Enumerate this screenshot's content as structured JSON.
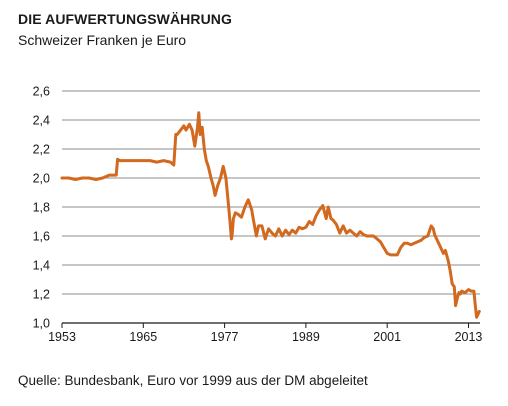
{
  "chart_data": {
    "type": "line",
    "title": "DIE AUFWERTUNGSWÄHRUNG",
    "subtitle": "Schweizer Franken je Euro",
    "source": "Quelle: Bundesbank, Euro vor 1999 aus der DM abgeleitet",
    "xlabel": "",
    "ylabel": "",
    "xlim": [
      1953,
      2014.7
    ],
    "ylim": [
      1.0,
      2.6
    ],
    "x_ticks": [
      1953,
      1965,
      1977,
      1989,
      2001,
      2013
    ],
    "y_ticks": [
      1.0,
      1.2,
      1.4,
      1.6,
      1.8,
      2.0,
      2.2,
      2.4,
      2.6
    ],
    "y_tick_labels": [
      "1,0",
      "1,2",
      "1,4",
      "1,6",
      "1,8",
      "2,0",
      "2,2",
      "2,4",
      "2,6"
    ],
    "grid": "horizontal",
    "line_color": "#d2691e",
    "series": [
      {
        "x": [
          1953.0,
          1954.0,
          1955.0,
          1956.0,
          1957.0,
          1958.0,
          1959.0,
          1960.0,
          1961.0,
          1961.2,
          1961.5,
          1962.0,
          1963.0,
          1964.0,
          1965.0,
          1966.0,
          1967.0,
          1968.0,
          1969.0,
          1969.5,
          1969.8,
          1970.0,
          1970.5,
          1971.0,
          1971.3,
          1971.8,
          1972.2,
          1972.6,
          1973.0,
          1973.2,
          1973.4,
          1973.7,
          1974.0,
          1974.3,
          1974.6,
          1975.0,
          1975.3,
          1975.6,
          1976.0,
          1976.4,
          1976.8,
          1977.2,
          1977.5,
          1977.8,
          1978.0,
          1978.1,
          1978.3,
          1978.6,
          1979.0,
          1979.5,
          1980.0,
          1980.5,
          1981.0,
          1981.3,
          1981.7,
          1982.0,
          1982.5,
          1983.0,
          1983.5,
          1984.0,
          1984.5,
          1985.0,
          1985.5,
          1986.0,
          1986.5,
          1987.0,
          1987.5,
          1988.0,
          1988.5,
          1989.0,
          1989.5,
          1990.0,
          1990.5,
          1991.0,
          1991.5,
          1992.0,
          1992.3,
          1992.7,
          1993.0,
          1993.5,
          1994.0,
          1994.5,
          1995.0,
          1995.5,
          1996.0,
          1996.5,
          1997.0,
          1997.5,
          1998.0,
          1998.5,
          1999.0,
          1999.5,
          2000.0,
          2000.5,
          2001.0,
          2001.5,
          2002.0,
          2002.5,
          2003.0,
          2003.5,
          2004.0,
          2004.5,
          2005.0,
          2005.5,
          2006.0,
          2006.5,
          2007.0,
          2007.5,
          2007.8,
          2008.0,
          2008.3,
          2008.6,
          2009.0,
          2009.3,
          2009.6,
          2010.0,
          2010.3,
          2010.6,
          2010.9,
          2011.1,
          2011.4,
          2011.6,
          2011.8,
          2012.0,
          2012.5,
          2013.0,
          2013.4,
          2013.8,
          2014.0,
          2014.2,
          2014.4,
          2014.6
        ],
        "values": [
          2.0,
          2.0,
          1.99,
          2.0,
          2.0,
          1.99,
          2.0,
          2.02,
          2.02,
          2.13,
          2.12,
          2.12,
          2.12,
          2.12,
          2.12,
          2.12,
          2.11,
          2.12,
          2.11,
          2.09,
          2.3,
          2.3,
          2.33,
          2.36,
          2.33,
          2.37,
          2.33,
          2.22,
          2.35,
          2.45,
          2.3,
          2.35,
          2.2,
          2.12,
          2.08,
          2.0,
          1.95,
          1.88,
          1.95,
          2.0,
          2.08,
          2.0,
          1.85,
          1.7,
          1.58,
          1.6,
          1.72,
          1.76,
          1.75,
          1.73,
          1.8,
          1.85,
          1.78,
          1.7,
          1.6,
          1.67,
          1.67,
          1.58,
          1.65,
          1.62,
          1.6,
          1.65,
          1.6,
          1.64,
          1.61,
          1.64,
          1.62,
          1.66,
          1.65,
          1.66,
          1.7,
          1.68,
          1.74,
          1.78,
          1.81,
          1.72,
          1.8,
          1.72,
          1.71,
          1.68,
          1.62,
          1.67,
          1.62,
          1.64,
          1.62,
          1.6,
          1.63,
          1.61,
          1.6,
          1.6,
          1.6,
          1.58,
          1.56,
          1.52,
          1.48,
          1.47,
          1.47,
          1.47,
          1.52,
          1.55,
          1.55,
          1.54,
          1.55,
          1.56,
          1.57,
          1.59,
          1.6,
          1.67,
          1.65,
          1.61,
          1.58,
          1.55,
          1.51,
          1.48,
          1.5,
          1.43,
          1.36,
          1.27,
          1.25,
          1.12,
          1.18,
          1.21,
          1.2,
          1.22,
          1.21,
          1.23,
          1.22,
          1.22,
          1.12,
          1.04,
          1.06,
          1.08
        ],
        "color": "#d2691e"
      }
    ]
  }
}
